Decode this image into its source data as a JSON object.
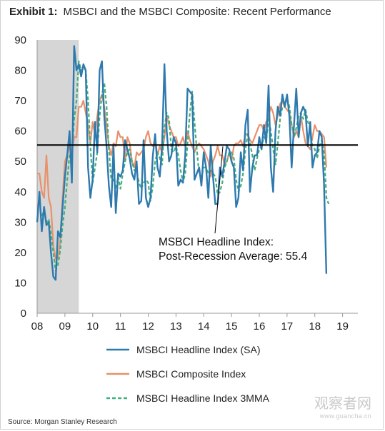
{
  "title": {
    "label": "Exhibit 1:",
    "text": "MSBCI and the MSBCI Composite: Recent Performance"
  },
  "source": "Source: Morgan Stanley Research",
  "watermark": {
    "main": "观察者网",
    "sub": "www.guancha.cn"
  },
  "colors": {
    "headline": "#2e79ae",
    "composite": "#e8916b",
    "mma": "#43b07a",
    "average": "#000000",
    "recession": "#d6d6d6",
    "axis": "#999999"
  },
  "chart_data": {
    "type": "line",
    "ylim": [
      0,
      90
    ],
    "yticks": [
      0,
      10,
      20,
      30,
      40,
      50,
      60,
      70,
      80,
      90
    ],
    "xlim": [
      2008.0,
      2019.55
    ],
    "xticks": [
      {
        "value": 2008,
        "label": "08"
      },
      {
        "value": 2009,
        "label": "09"
      },
      {
        "value": 2010,
        "label": "10"
      },
      {
        "value": 2011,
        "label": "11"
      },
      {
        "value": 2012,
        "label": "12"
      },
      {
        "value": 2013,
        "label": "13"
      },
      {
        "value": 2014,
        "label": "14"
      },
      {
        "value": 2015,
        "label": "15"
      },
      {
        "value": 2016,
        "label": "16"
      },
      {
        "value": 2017,
        "label": "17"
      },
      {
        "value": 2018,
        "label": "18"
      },
      {
        "value": 2019,
        "label": "19"
      }
    ],
    "recession_band": [
      2008.0,
      2009.5
    ],
    "average": {
      "value": 55.4,
      "label_line1": "MSBCI Headline Index:",
      "label_line2": "Post-Recession Average: 55.4"
    },
    "series": [
      {
        "key": "headline",
        "name": "MSBCI Headline Index (SA)",
        "style": "solid",
        "x_start": 2008.0,
        "step": 0.083333,
        "values": [
          30,
          40,
          27,
          35,
          29,
          30,
          20,
          12,
          11,
          27,
          25,
          35,
          45,
          52,
          60,
          43,
          88,
          80,
          82,
          78,
          82,
          80,
          48,
          38,
          44,
          63,
          53,
          80,
          83,
          65,
          55,
          42,
          35,
          55,
          33,
          46,
          45,
          47,
          57,
          54,
          51,
          46,
          44,
          50,
          36,
          37,
          57,
          38,
          35,
          38,
          52,
          59,
          48,
          45,
          55,
          82,
          60,
          50,
          52,
          58,
          56,
          42,
          44,
          43,
          52,
          74,
          73,
          72,
          44,
          46,
          48,
          42,
          53,
          48,
          38,
          55,
          45,
          36,
          36,
          48,
          45,
          50,
          55,
          54,
          50,
          48,
          35,
          38,
          53,
          47,
          62,
          67,
          40,
          48,
          52,
          52,
          58,
          54,
          62,
          56,
          75,
          48,
          40,
          60,
          68,
          65,
          72,
          68,
          72,
          65,
          48,
          62,
          74,
          58,
          66,
          68,
          66,
          55,
          63,
          48,
          52,
          53,
          60,
          58,
          42,
          13
        ]
      },
      {
        "key": "composite",
        "name": "MSBCI Composite Index",
        "style": "solid",
        "x_start": 2008.0,
        "step": 0.083333,
        "values": [
          46,
          46,
          40,
          38,
          52,
          38,
          35,
          22,
          18,
          18,
          24,
          38,
          50,
          52,
          55,
          53,
          58,
          58,
          68,
          68,
          70,
          66,
          62,
          56,
          63,
          59,
          65,
          70,
          72,
          68,
          62,
          55,
          52,
          56,
          55,
          60,
          58,
          58,
          50,
          58,
          56,
          50,
          48,
          53,
          52,
          53,
          54,
          58,
          60,
          56,
          55,
          57,
          52,
          55,
          53,
          58,
          65,
          62,
          60,
          58,
          58,
          55,
          56,
          58,
          55,
          60,
          57,
          55,
          53,
          55,
          56,
          55,
          54,
          52,
          50,
          45,
          50,
          52,
          55,
          52,
          52,
          49,
          50,
          53,
          50,
          55,
          56,
          56,
          57,
          55,
          59,
          59,
          57,
          56,
          58,
          60,
          62,
          62,
          60,
          63,
          65,
          68,
          66,
          62,
          65,
          69,
          70,
          68,
          67,
          66,
          62,
          58,
          60,
          58,
          65,
          60,
          56,
          55,
          54,
          58,
          62,
          60,
          60,
          59,
          58,
          48
        ]
      },
      {
        "key": "mma",
        "name": "MSBCI Headline Index 3MMA",
        "style": "dashed",
        "x_start": 2008.167,
        "step": 0.083333,
        "values": [
          32,
          34,
          30,
          31,
          26,
          20,
          14,
          16,
          21,
          29,
          35,
          44,
          52,
          52,
          64,
          70,
          83,
          80,
          81,
          80,
          70,
          55,
          43,
          48,
          53,
          65,
          72,
          76,
          68,
          54,
          44,
          44,
          41,
          45,
          41,
          46,
          50,
          53,
          54,
          50,
          47,
          47,
          43,
          41,
          43,
          44,
          43,
          37,
          42,
          50,
          53,
          51,
          49,
          61,
          66,
          64,
          54,
          53,
          55,
          52,
          47,
          43,
          46,
          56,
          66,
          73,
          63,
          54,
          46,
          45,
          48,
          48,
          46,
          47,
          46,
          45,
          39,
          40,
          43,
          48,
          50,
          53,
          53,
          51,
          44,
          40,
          42,
          46,
          54,
          59,
          56,
          52,
          47,
          51,
          54,
          55,
          58,
          57,
          64,
          60,
          54,
          49,
          56,
          64,
          68,
          68,
          71,
          68,
          62,
          58,
          61,
          65,
          66,
          64,
          67,
          63,
          61,
          55,
          54,
          51,
          55,
          57,
          53,
          38,
          36
        ]
      }
    ]
  }
}
